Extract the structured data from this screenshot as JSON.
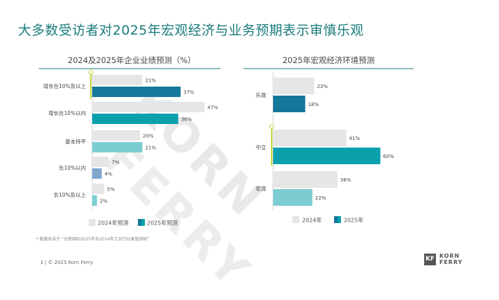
{
  "title": "大多数受访者对2025年宏观经济与业务预期表示审慎乐观",
  "watermark": {
    "line1": "KORN",
    "line2": "FERRY"
  },
  "colors": {
    "c2024": "#e6e6e6",
    "c2025_dark": "#14789a",
    "c2025_teal": "#0aa1ad",
    "c2025_light": "#7ccdd2",
    "c2025_blue": "#7fa7cc",
    "accent": "#1a7a7a",
    "marker": "#c9d63e"
  },
  "chart_data": [
    {
      "type": "bar",
      "orientation": "horizontal",
      "title": "2024及2025年企业业绩预测（%）",
      "categories": [
        "增长在10%及以上",
        "增长在10%以内",
        "基本持平",
        "负10%以内",
        "负10%及以上"
      ],
      "series": [
        {
          "name": "2024年预测",
          "values": [
            21,
            47,
            20,
            7,
            5
          ],
          "labels": [
            "21%",
            "47%",
            "20%",
            "7%",
            "5%"
          ]
        },
        {
          "name": "2025年预测",
          "values": [
            37,
            36,
            21,
            4,
            2
          ],
          "labels": [
            "37%",
            "36%",
            "21%",
            "4%",
            "2%"
          ]
        }
      ],
      "xlim": [
        0,
        50
      ]
    },
    {
      "type": "bar",
      "orientation": "horizontal",
      "title": "2025年宏观经济环境预测",
      "categories": [
        "乐观",
        "中立",
        "悲观"
      ],
      "series": [
        {
          "name": "2024年",
          "values": [
            23,
            41,
            36
          ],
          "labels": [
            "23%",
            "41%",
            "36%"
          ]
        },
        {
          "name": "2025年",
          "values": [
            18,
            60,
            22
          ],
          "labels": [
            "18%",
            "60%",
            "22%"
          ]
        }
      ],
      "xlim": [
        0,
        60
      ]
    }
  ],
  "footnote": "* 数据来自于 “光辉国际2025年及2024年工业行业高管调研”",
  "footer": "1  |  © 2025 Korn Ferry",
  "logo": {
    "mark": "KF",
    "line1": "KORN",
    "line2": "FERRY"
  }
}
